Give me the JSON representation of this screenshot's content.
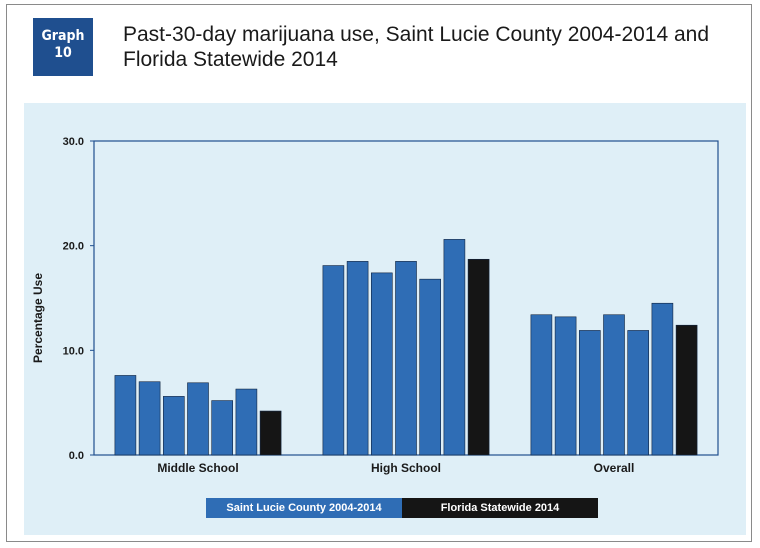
{
  "header": {
    "badge_line1": "Graph",
    "badge_line2": "10",
    "title_line1": "Past-30-day marijuana use, Saint Lucie County 2004-2014 and",
    "title_line2": "Florida Statewide 2014"
  },
  "colors": {
    "county": "#2f6db5",
    "statewide": "#151515",
    "panel": "#dfeff7",
    "axis": "#1f4f8f"
  },
  "chart_data": {
    "type": "bar",
    "title": "",
    "xlabel": "",
    "ylabel": "Percentage Use",
    "ylim": [
      0,
      30
    ],
    "yticks": [
      "0.0",
      "10.0",
      "20.0",
      "30.0"
    ],
    "categories": [
      "Middle School",
      "High School",
      "Overall"
    ],
    "series": [
      {
        "name": "Saint Lucie County 2004-2014",
        "group": "county",
        "values": [
          [
            7.6,
            7.0,
            5.6,
            6.9,
            5.2,
            6.3
          ],
          [
            18.1,
            18.5,
            17.4,
            18.5,
            16.8,
            20.6
          ],
          [
            13.4,
            13.2,
            11.9,
            13.4,
            11.9,
            14.5
          ]
        ]
      },
      {
        "name": "Florida Statewide 2014",
        "group": "statewide",
        "values": [
          4.2,
          18.7,
          12.4
        ]
      }
    ],
    "legend": [
      "Saint Lucie County 2004-2014",
      "Florida Statewide 2014"
    ],
    "legend_position": "bottom",
    "grid": false
  }
}
